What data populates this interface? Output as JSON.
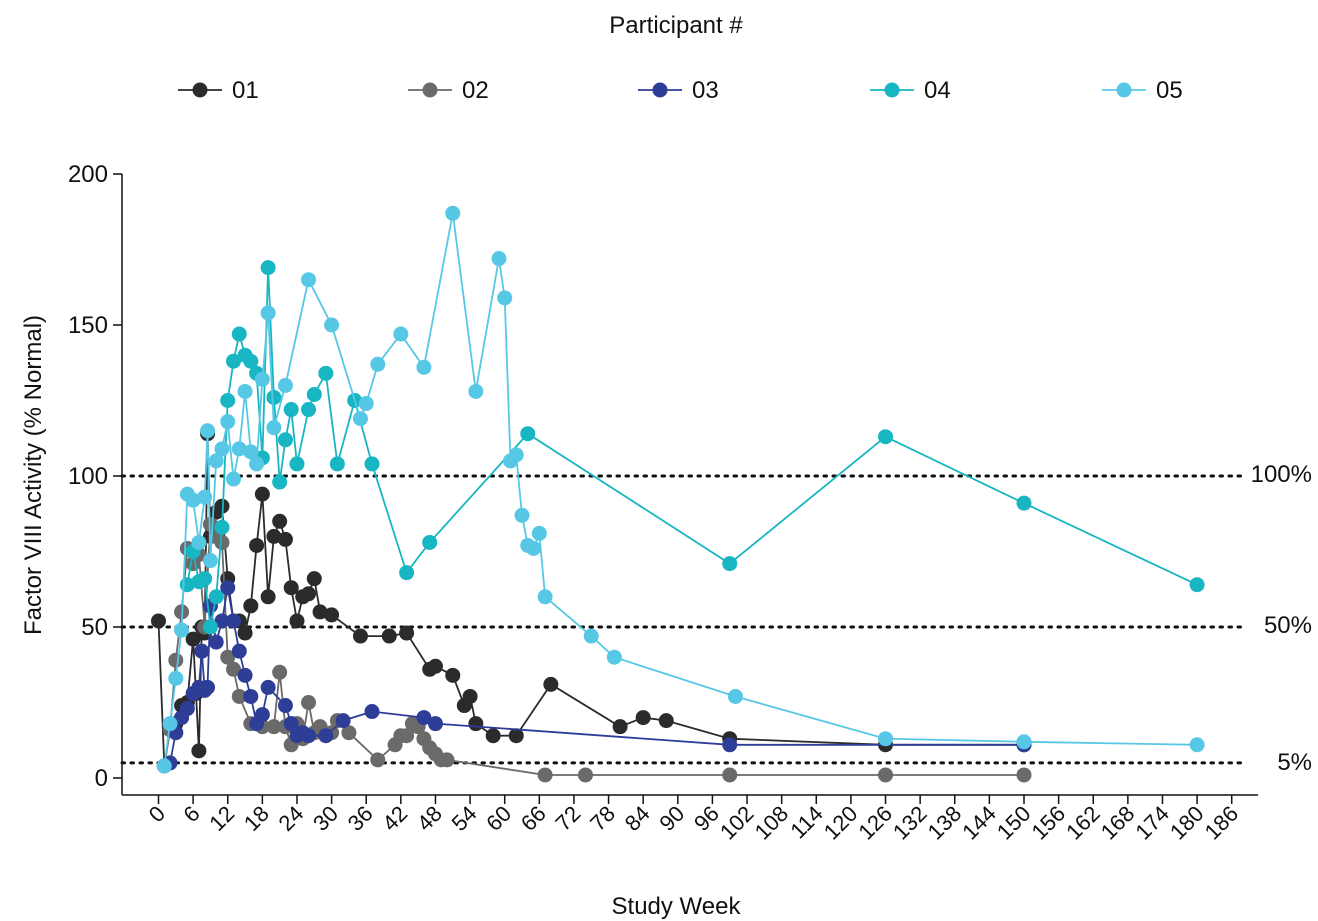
{
  "chart_data": {
    "type": "line",
    "legend_title": "Participant #",
    "legend_position": "top",
    "xlabel": "Study Week",
    "ylabel": "Factor VIII Activity (% Normal)",
    "xlim": [
      -2,
      187
    ],
    "ylim": [
      0,
      200
    ],
    "xticks": [
      0,
      6,
      12,
      18,
      24,
      30,
      36,
      42,
      48,
      54,
      60,
      66,
      72,
      78,
      84,
      90,
      96,
      102,
      108,
      114,
      120,
      126,
      132,
      138,
      144,
      150,
      156,
      162,
      168,
      174,
      180,
      186
    ],
    "yticks": [
      0,
      50,
      100,
      150,
      200
    ],
    "grid": false,
    "reference_lines": [
      {
        "y": 100,
        "label": "100%"
      },
      {
        "y": 50,
        "label": "50%"
      },
      {
        "y": 5,
        "label": "5%"
      }
    ],
    "series": [
      {
        "name": "01",
        "color": "#2b2b2b",
        "points": [
          [
            0,
            52
          ],
          [
            1,
            4
          ],
          [
            2,
            16
          ],
          [
            3,
            18
          ],
          [
            4,
            24
          ],
          [
            5,
            25
          ],
          [
            6,
            46
          ],
          [
            6.5,
            28
          ],
          [
            7,
            9
          ],
          [
            7.5,
            50
          ],
          [
            8,
            48
          ],
          [
            8.5,
            114
          ],
          [
            9,
            80
          ],
          [
            10,
            88
          ],
          [
            11,
            90
          ],
          [
            12,
            66
          ],
          [
            13,
            52
          ],
          [
            14,
            52
          ],
          [
            15,
            48
          ],
          [
            16,
            57
          ],
          [
            17,
            77
          ],
          [
            18,
            94
          ],
          [
            19,
            60
          ],
          [
            20,
            80
          ],
          [
            21,
            85
          ],
          [
            22,
            79
          ],
          [
            23,
            63
          ],
          [
            24,
            52
          ],
          [
            25,
            60
          ],
          [
            26,
            61
          ],
          [
            27,
            66
          ],
          [
            28,
            55
          ],
          [
            30,
            54
          ],
          [
            35,
            47
          ],
          [
            40,
            47
          ],
          [
            43,
            48
          ],
          [
            47,
            36
          ],
          [
            48,
            37
          ],
          [
            51,
            34
          ],
          [
            53,
            24
          ],
          [
            54,
            27
          ],
          [
            55,
            18
          ],
          [
            58,
            14
          ],
          [
            62,
            14
          ],
          [
            68,
            31
          ],
          [
            80,
            17
          ],
          [
            84,
            20
          ],
          [
            88,
            19
          ],
          [
            99,
            13
          ],
          [
            126,
            11
          ],
          [
            150,
            11
          ]
        ]
      },
      {
        "name": "02",
        "color": "#6a6a6a",
        "points": [
          [
            1,
            4
          ],
          [
            2,
            16
          ],
          [
            3,
            39
          ],
          [
            4,
            55
          ],
          [
            5,
            76
          ],
          [
            6,
            71
          ],
          [
            7,
            74
          ],
          [
            8,
            50
          ],
          [
            9,
            84
          ],
          [
            10,
            80
          ],
          [
            11,
            78
          ],
          [
            12,
            40
          ],
          [
            13,
            36
          ],
          [
            14,
            27
          ],
          [
            16,
            18
          ],
          [
            18,
            17
          ],
          [
            20,
            17
          ],
          [
            21,
            35
          ],
          [
            22,
            17
          ],
          [
            23,
            11
          ],
          [
            24,
            18
          ],
          [
            25,
            13
          ],
          [
            26,
            25
          ],
          [
            27,
            15
          ],
          [
            28,
            17
          ],
          [
            30,
            15
          ],
          [
            31,
            19
          ],
          [
            33,
            15
          ],
          [
            38,
            6
          ],
          [
            41,
            11
          ],
          [
            42,
            14
          ],
          [
            43,
            14
          ],
          [
            44,
            18
          ],
          [
            45,
            17
          ],
          [
            46,
            13
          ],
          [
            47,
            10
          ],
          [
            48,
            8
          ],
          [
            49,
            6
          ],
          [
            50,
            6
          ],
          [
            67,
            1
          ],
          [
            74,
            1
          ],
          [
            99,
            1
          ],
          [
            126,
            1
          ],
          [
            150,
            1
          ]
        ]
      },
      {
        "name": "03",
        "color": "#2e3e96",
        "points": [
          [
            2,
            5
          ],
          [
            3,
            15
          ],
          [
            4,
            20
          ],
          [
            5,
            23
          ],
          [
            6,
            28
          ],
          [
            7,
            30
          ],
          [
            7.5,
            42
          ],
          [
            8,
            29
          ],
          [
            8.5,
            30
          ],
          [
            9,
            57
          ],
          [
            10,
            45
          ],
          [
            11,
            52
          ],
          [
            12,
            63
          ],
          [
            13,
            52
          ],
          [
            14,
            42
          ],
          [
            15,
            34
          ],
          [
            16,
            27
          ],
          [
            17,
            18
          ],
          [
            18,
            21
          ],
          [
            19,
            30
          ],
          [
            22,
            24
          ],
          [
            23,
            18
          ],
          [
            24,
            14
          ],
          [
            25,
            15
          ],
          [
            26,
            14
          ],
          [
            29,
            14
          ],
          [
            32,
            19
          ],
          [
            37,
            22
          ],
          [
            46,
            20
          ],
          [
            48,
            18
          ],
          [
            99,
            11
          ],
          [
            150,
            11
          ]
        ]
      },
      {
        "name": "04",
        "color": "#17b6c2",
        "points": [
          [
            5,
            64
          ],
          [
            6,
            75
          ],
          [
            7,
            65
          ],
          [
            8,
            66
          ],
          [
            9,
            50
          ],
          [
            10,
            60
          ],
          [
            11,
            83
          ],
          [
            12,
            125
          ],
          [
            13,
            138
          ],
          [
            14,
            147
          ],
          [
            15,
            140
          ],
          [
            16,
            138
          ],
          [
            17,
            134
          ],
          [
            18,
            106
          ],
          [
            19,
            169
          ],
          [
            20,
            126
          ],
          [
            21,
            98
          ],
          [
            22,
            112
          ],
          [
            23,
            122
          ],
          [
            24,
            104
          ],
          [
            26,
            122
          ],
          [
            27,
            127
          ],
          [
            29,
            134
          ],
          [
            31,
            104
          ],
          [
            34,
            125
          ],
          [
            37,
            104
          ],
          [
            43,
            68
          ],
          [
            47,
            78
          ],
          [
            64,
            114
          ],
          [
            99,
            71
          ],
          [
            126,
            113
          ],
          [
            150,
            91
          ],
          [
            180,
            64
          ]
        ]
      },
      {
        "name": "05",
        "color": "#56c8e6",
        "points": [
          [
            1,
            4
          ],
          [
            2,
            18
          ],
          [
            3,
            33
          ],
          [
            4,
            49
          ],
          [
            5,
            94
          ],
          [
            6,
            92
          ],
          [
            7,
            78
          ],
          [
            8,
            93
          ],
          [
            8.5,
            115
          ],
          [
            9,
            72
          ],
          [
            10,
            105
          ],
          [
            11,
            109
          ],
          [
            12,
            118
          ],
          [
            13,
            99
          ],
          [
            14,
            109
          ],
          [
            15,
            128
          ],
          [
            16,
            108
          ],
          [
            17,
            104
          ],
          [
            18,
            132
          ],
          [
            19,
            154
          ],
          [
            20,
            116
          ],
          [
            22,
            130
          ],
          [
            26,
            165
          ],
          [
            30,
            150
          ],
          [
            35,
            119
          ],
          [
            36,
            124
          ],
          [
            38,
            137
          ],
          [
            42,
            147
          ],
          [
            46,
            136
          ],
          [
            51,
            187
          ],
          [
            55,
            128
          ],
          [
            59,
            172
          ],
          [
            60,
            159
          ],
          [
            61,
            105
          ],
          [
            62,
            107
          ],
          [
            63,
            87
          ],
          [
            64,
            77
          ],
          [
            65,
            76
          ],
          [
            66,
            81
          ],
          [
            67,
            60
          ],
          [
            75,
            47
          ],
          [
            79,
            40
          ],
          [
            100,
            27
          ],
          [
            126,
            13
          ],
          [
            150,
            12
          ],
          [
            180,
            11
          ]
        ]
      }
    ]
  }
}
